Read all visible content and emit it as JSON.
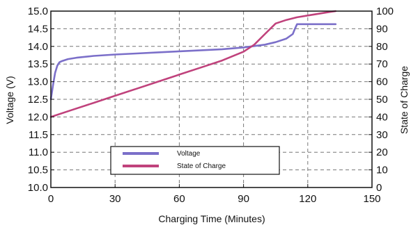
{
  "chart_data": {
    "type": "line",
    "xlabel": "Charging Time (Minutes)",
    "ylabel_left": "Voltage (V)",
    "ylabel_right": "State of Charge",
    "xlim": [
      0,
      150
    ],
    "ylim_left": [
      10.0,
      15.0
    ],
    "ylim_right": [
      0,
      100
    ],
    "x_ticks": [
      "0",
      "30",
      "60",
      "90",
      "120",
      "150"
    ],
    "y_left_ticks": [
      "10.0",
      "10.5",
      "11.0",
      "11.5",
      "12.0",
      "12.5",
      "13.0",
      "13.5",
      "14.0",
      "14.5",
      "15.0"
    ],
    "y_right_ticks": [
      "0",
      "10",
      "20",
      "30",
      "40",
      "50",
      "60",
      "70",
      "80",
      "90",
      "100"
    ],
    "grid": true,
    "legend_position": "bottom-center",
    "series": [
      {
        "name": "Voltage",
        "axis": "left",
        "color": "#7b6fc9",
        "x": [
          0,
          1,
          2,
          3,
          4,
          5,
          8,
          12,
          20,
          30,
          40,
          50,
          60,
          70,
          80,
          90,
          100,
          105,
          110,
          113,
          114,
          115,
          120,
          125,
          130,
          133
        ],
        "y": [
          12.5,
          12.9,
          13.25,
          13.45,
          13.55,
          13.58,
          13.64,
          13.68,
          13.73,
          13.77,
          13.8,
          13.83,
          13.86,
          13.89,
          13.92,
          13.97,
          14.05,
          14.12,
          14.22,
          14.35,
          14.5,
          14.63,
          14.63,
          14.63,
          14.63,
          14.63
        ]
      },
      {
        "name": "State of Charge",
        "axis": "right",
        "color": "#c0427c",
        "x": [
          0,
          10,
          20,
          30,
          40,
          50,
          60,
          70,
          80,
          90,
          95,
          100,
          105,
          110,
          115,
          120,
          125,
          130,
          133
        ],
        "y": [
          40,
          44,
          48,
          52,
          56,
          60,
          64,
          68,
          72,
          77,
          81,
          87,
          93,
          95,
          96.5,
          97.5,
          98.5,
          99.5,
          100
        ]
      }
    ]
  }
}
